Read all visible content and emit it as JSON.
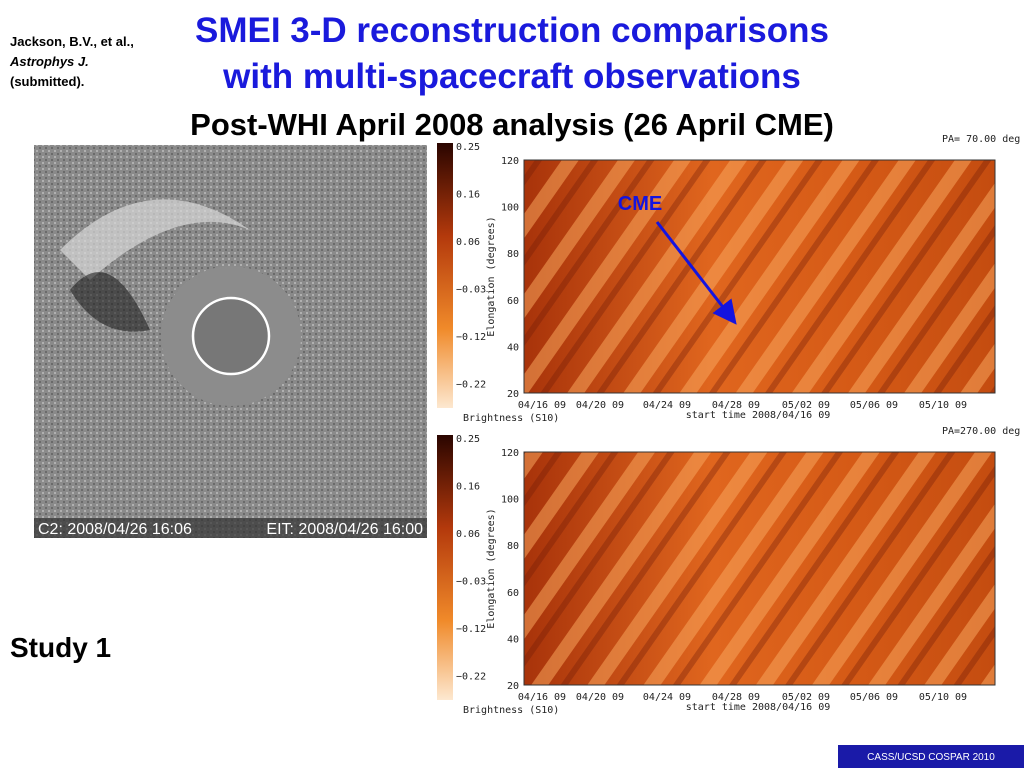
{
  "citation": {
    "authors": "Jackson, B.V., et al.,",
    "journal": "Astrophys J.",
    "status": "(submitted)."
  },
  "title": [
    "SMEI 3-D reconstruction comparisons",
    "with multi-spacecraft observations"
  ],
  "subtitle": "Post-WHI April 2008 analysis (26 April CME)",
  "coronagraph": {
    "left_caption": "C2: 2008/04/26 16:06",
    "right_caption": "EIT: 2008/04/26 16:00"
  },
  "study": "Study 1",
  "panels": [
    {
      "pa": "PA= 70.00 deg",
      "annotation": "CME",
      "y_label": "Elongation (degrees)",
      "yticks": [
        "120",
        "100",
        "80",
        "60",
        "40",
        "20"
      ],
      "xticks": [
        "04/16 09",
        "04/20 09",
        "04/24 09",
        "04/28 09",
        "05/02 09",
        "05/06 09",
        "05/10 09"
      ],
      "x_label": "start time 2008/04/16 09",
      "colorbar_ticks": [
        "0.25",
        "0.16",
        "0.06",
        "−0.03",
        "−0.12",
        "−0.22"
      ],
      "colorbar_label": "Brightness (S10)"
    },
    {
      "pa": "PA=270.00 deg",
      "y_label": "Elongation (degrees)",
      "yticks": [
        "120",
        "100",
        "80",
        "60",
        "40",
        "20"
      ],
      "xticks": [
        "04/16 09",
        "04/20 09",
        "04/24 09",
        "04/28 09",
        "05/02 09",
        "05/06 09",
        "05/10 09"
      ],
      "x_label": "start time 2008/04/16 09",
      "colorbar_ticks": [
        "0.25",
        "0.16",
        "0.06",
        "−0.03",
        "−0.12",
        "−0.22"
      ],
      "colorbar_label": "Brightness (S10)"
    }
  ],
  "footer": "CASS/UCSD COSPAR 2010"
}
